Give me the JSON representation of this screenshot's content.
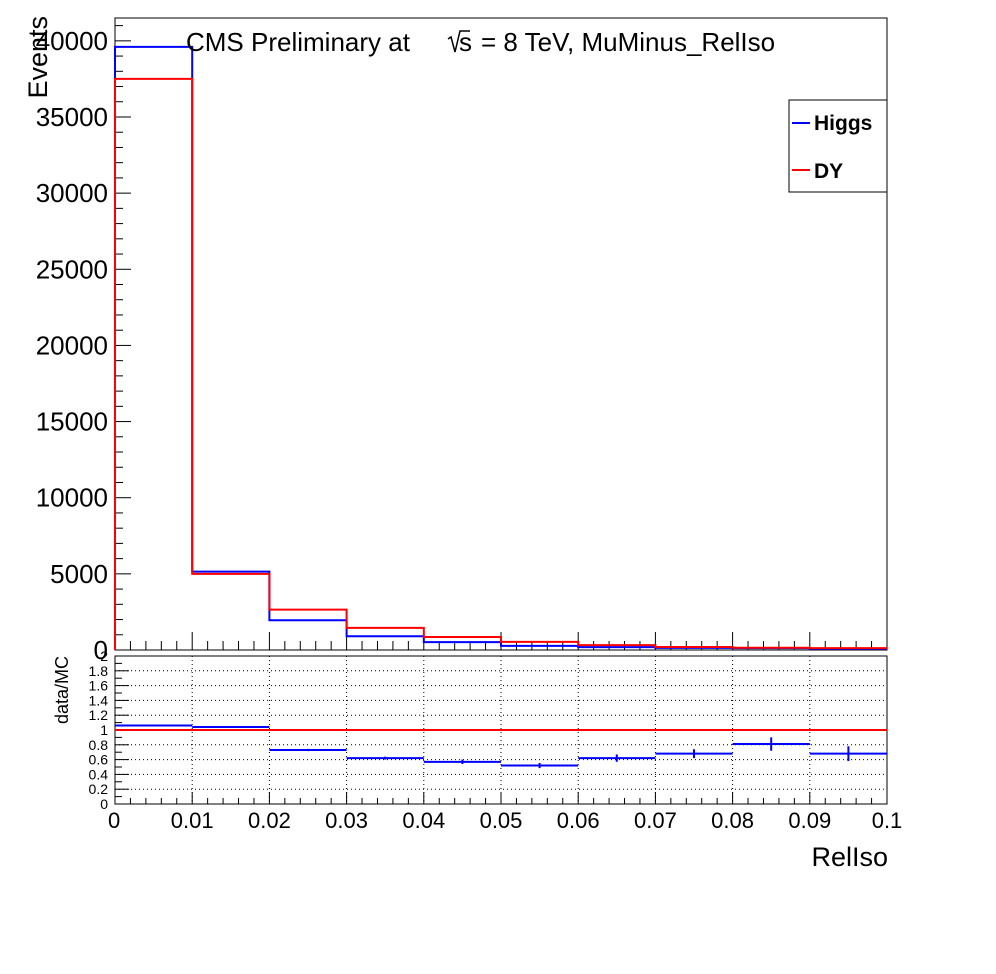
{
  "chart_data": [
    {
      "type": "step",
      "title": "CMS Preliminary at",
      "title_sqrt": "s",
      "title_rest": "= 8 TeV, MuMinus_RelIso",
      "ylabel": "Events",
      "xlim": [
        0,
        0.1
      ],
      "ylim": [
        0,
        41500
      ],
      "yticks": [
        {
          "value": 0,
          "label": "0"
        },
        {
          "value": 5000,
          "label": "5000"
        },
        {
          "value": 10000,
          "label": "10000"
        },
        {
          "value": 15000,
          "label": "15000"
        },
        {
          "value": 20000,
          "label": "20000"
        },
        {
          "value": 25000,
          "label": "25000"
        },
        {
          "value": 30000,
          "label": "30000"
        },
        {
          "value": 35000,
          "label": "35000"
        },
        {
          "value": 40000,
          "label": "40000"
        }
      ],
      "bin_edges": [
        0,
        0.01,
        0.02,
        0.03,
        0.04,
        0.05,
        0.06,
        0.07,
        0.08,
        0.09,
        0.1
      ],
      "legend_position": "top-right",
      "series": [
        {
          "name": "Higgs",
          "color": "#0000ff",
          "values": [
            39600,
            5150,
            1950,
            900,
            520,
            270,
            190,
            140,
            120,
            80
          ]
        },
        {
          "name": "DY",
          "color": "#ff0000",
          "values": [
            37500,
            5000,
            2650,
            1450,
            850,
            530,
            320,
            200,
            150,
            120
          ]
        }
      ]
    },
    {
      "type": "ratio",
      "ylabel": "data/MC",
      "xlabel": "RelIso",
      "xlim": [
        0,
        0.1
      ],
      "ylim": [
        0,
        2
      ],
      "reference_line": 1,
      "reference_color": "#ff0000",
      "grid": true,
      "yticks": [
        {
          "value": 0,
          "label": "0"
        },
        {
          "value": 0.2,
          "label": "0.2"
        },
        {
          "value": 0.4,
          "label": "0.4"
        },
        {
          "value": 0.6,
          "label": "0.6"
        },
        {
          "value": 0.8,
          "label": "0.8"
        },
        {
          "value": 1.0,
          "label": "1"
        },
        {
          "value": 1.2,
          "label": "1.2"
        },
        {
          "value": 1.4,
          "label": "1.4"
        },
        {
          "value": 1.6,
          "label": "1.6"
        },
        {
          "value": 1.8,
          "label": "1.8"
        },
        {
          "value": 2.0,
          "label": "2"
        }
      ],
      "xticks": [
        {
          "value": 0,
          "label": "0"
        },
        {
          "value": 0.01,
          "label": "0.01"
        },
        {
          "value": 0.02,
          "label": "0.02"
        },
        {
          "value": 0.03,
          "label": "0.03"
        },
        {
          "value": 0.04,
          "label": "0.04"
        },
        {
          "value": 0.05,
          "label": "0.05"
        },
        {
          "value": 0.06,
          "label": "0.06"
        },
        {
          "value": 0.07,
          "label": "0.07"
        },
        {
          "value": 0.08,
          "label": "0.08"
        },
        {
          "value": 0.09,
          "label": "0.09"
        },
        {
          "value": 0.1,
          "label": "0.1"
        }
      ],
      "series": [
        {
          "color": "#0000ff",
          "x": [
            0.005,
            0.015,
            0.025,
            0.035,
            0.045,
            0.055,
            0.065,
            0.075,
            0.085,
            0.095
          ],
          "y": [
            1.06,
            1.04,
            0.73,
            0.62,
            0.57,
            0.52,
            0.62,
            0.68,
            0.81,
            0.68
          ],
          "yerr": [
            0.003,
            0.008,
            0.015,
            0.02,
            0.03,
            0.035,
            0.05,
            0.06,
            0.09,
            0.1
          ]
        }
      ]
    }
  ]
}
